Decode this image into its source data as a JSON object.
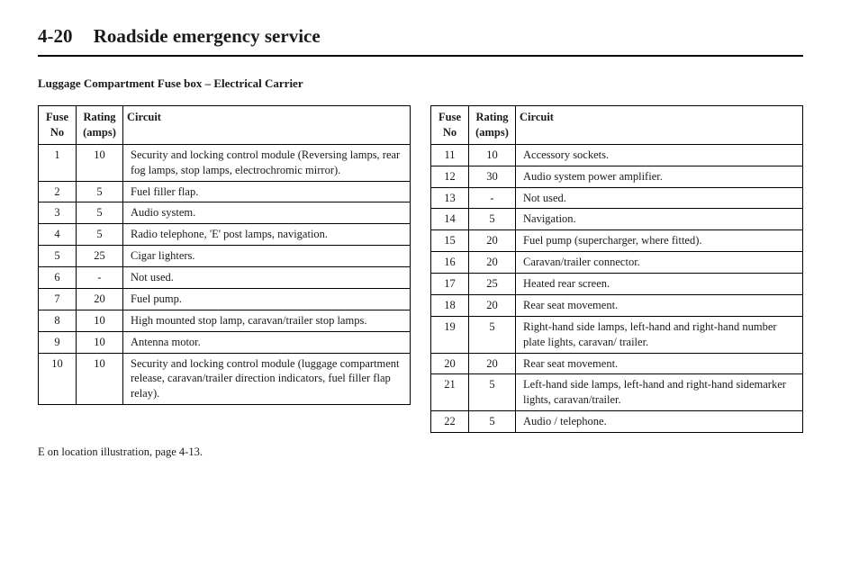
{
  "header": {
    "page_number": "4-20",
    "title": "Roadside emergency service"
  },
  "subtitle": "Luggage Compartment Fuse box – Electrical Carrier",
  "table_headers": {
    "fuse_no_line1": "Fuse",
    "fuse_no_line2": "No",
    "rating_line1": "Rating",
    "rating_line2": "(amps)",
    "circuit": "Circuit"
  },
  "left_rows": [
    {
      "no": "1",
      "rating": "10",
      "circuit": "Security and locking control module (Reversing lamps, rear fog lamps, stop lamps, electrochromic mirror)."
    },
    {
      "no": "2",
      "rating": "5",
      "circuit": "Fuel filler flap."
    },
    {
      "no": "3",
      "rating": "5",
      "circuit": "Audio system."
    },
    {
      "no": "4",
      "rating": "5",
      "circuit": "Radio telephone, 'E' post lamps, navigation."
    },
    {
      "no": "5",
      "rating": "25",
      "circuit": "Cigar lighters."
    },
    {
      "no": "6",
      "rating": "-",
      "circuit": "Not used."
    },
    {
      "no": "7",
      "rating": "20",
      "circuit": "Fuel pump."
    },
    {
      "no": "8",
      "rating": "10",
      "circuit": "High mounted stop lamp, caravan/trailer stop lamps."
    },
    {
      "no": "9",
      "rating": "10",
      "circuit": "Antenna motor."
    },
    {
      "no": "10",
      "rating": "10",
      "circuit": "Security and locking control module (luggage compartment release, caravan/trailer direction indicators, fuel filler flap relay)."
    }
  ],
  "right_rows": [
    {
      "no": "11",
      "rating": "10",
      "circuit": "Accessory sockets."
    },
    {
      "no": "12",
      "rating": "30",
      "circuit": "Audio system power amplifier."
    },
    {
      "no": "13",
      "rating": "-",
      "circuit": "Not used."
    },
    {
      "no": "14",
      "rating": "5",
      "circuit": "Navigation."
    },
    {
      "no": "15",
      "rating": "20",
      "circuit": "Fuel pump (supercharger, where fitted)."
    },
    {
      "no": "16",
      "rating": "20",
      "circuit": "Caravan/trailer connector."
    },
    {
      "no": "17",
      "rating": "25",
      "circuit": "Heated rear screen."
    },
    {
      "no": "18",
      "rating": "20",
      "circuit": "Rear seat movement."
    },
    {
      "no": "19",
      "rating": "5",
      "circuit": "Right-hand side lamps, left-hand and right-hand number plate lights, caravan/ trailer."
    },
    {
      "no": "20",
      "rating": "20",
      "circuit": "Rear seat movement."
    },
    {
      "no": "21",
      "rating": "5",
      "circuit": "Left-hand side lamps, left-hand and right-hand sidemarker lights, caravan/trailer."
    },
    {
      "no": "22",
      "rating": "5",
      "circuit": "Audio / telephone."
    }
  ],
  "footnote": "E  on location illustration, page 4-13."
}
